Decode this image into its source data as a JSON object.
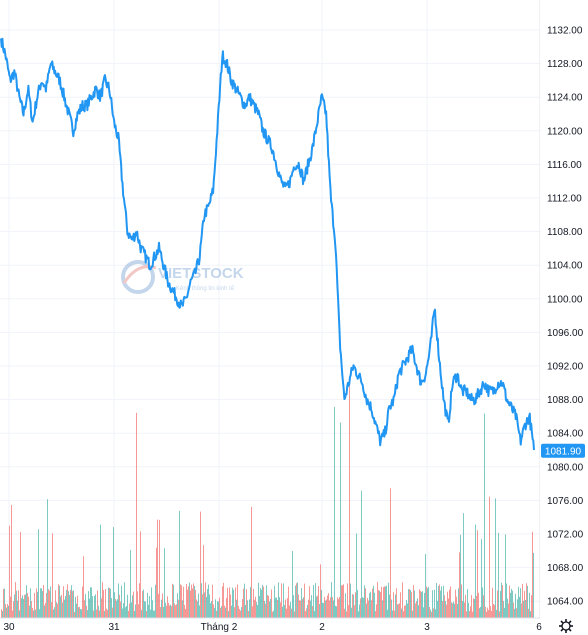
{
  "chart_data": {
    "type": "line",
    "y_axis": {
      "side": "right",
      "min": 1062,
      "max": 1135,
      "ticks": [
        "1132.00",
        "1128.00",
        "1124.00",
        "1120.00",
        "1116.00",
        "1112.00",
        "1108.00",
        "1104.00",
        "1100.00",
        "1096.00",
        "1092.00",
        "1088.00",
        "1084.00",
        "1080.00",
        "1076.00",
        "1072.00",
        "1068.00",
        "1064.00"
      ]
    },
    "x_axis": {
      "labels": [
        "30",
        "31",
        "Tháng 2",
        "2",
        "3",
        "6"
      ]
    },
    "grid": true,
    "last_price": {
      "value": 1081.9,
      "label": "1081.90"
    },
    "series": [
      {
        "values": [
          1131,
          1129,
          1126,
          1127,
          1124,
          1122,
          1125,
          1121,
          1124,
          1126,
          1125,
          1128,
          1127,
          1126,
          1124,
          1122,
          1120,
          1122,
          1123,
          1123,
          1124,
          1125,
          1124,
          1126,
          1125,
          1121,
          1119,
          1113,
          1108,
          1107,
          1108,
          1106,
          1105,
          1104,
          1105,
          1106,
          1104,
          1102,
          1101,
          1100,
          1099,
          1100,
          1102,
          1103,
          1105,
          1110,
          1111,
          1113,
          1121,
          1129,
          1128,
          1126,
          1125,
          1124,
          1123,
          1124,
          1123,
          1122,
          1120,
          1119,
          1118,
          1116,
          1114,
          1113,
          1114,
          1116,
          1116,
          1114,
          1116,
          1118,
          1121,
          1124,
          1122,
          1112,
          1107,
          1095,
          1088,
          1090,
          1092,
          1091,
          1090,
          1088,
          1087,
          1085,
          1083,
          1084,
          1087,
          1088,
          1091,
          1092,
          1093,
          1094,
          1092,
          1090,
          1091,
          1094,
          1099,
          1093,
          1088,
          1085,
          1090,
          1091,
          1089,
          1089,
          1088,
          1088,
          1089,
          1090,
          1089,
          1089,
          1090,
          1090,
          1088,
          1087,
          1086,
          1083,
          1085,
          1086,
          1082
        ]
      }
    ]
  },
  "watermark": {
    "brand": "VIETSTOCK",
    "tagline": "Kênh thông tin kinh tế"
  },
  "settings_icon": "gear-icon"
}
